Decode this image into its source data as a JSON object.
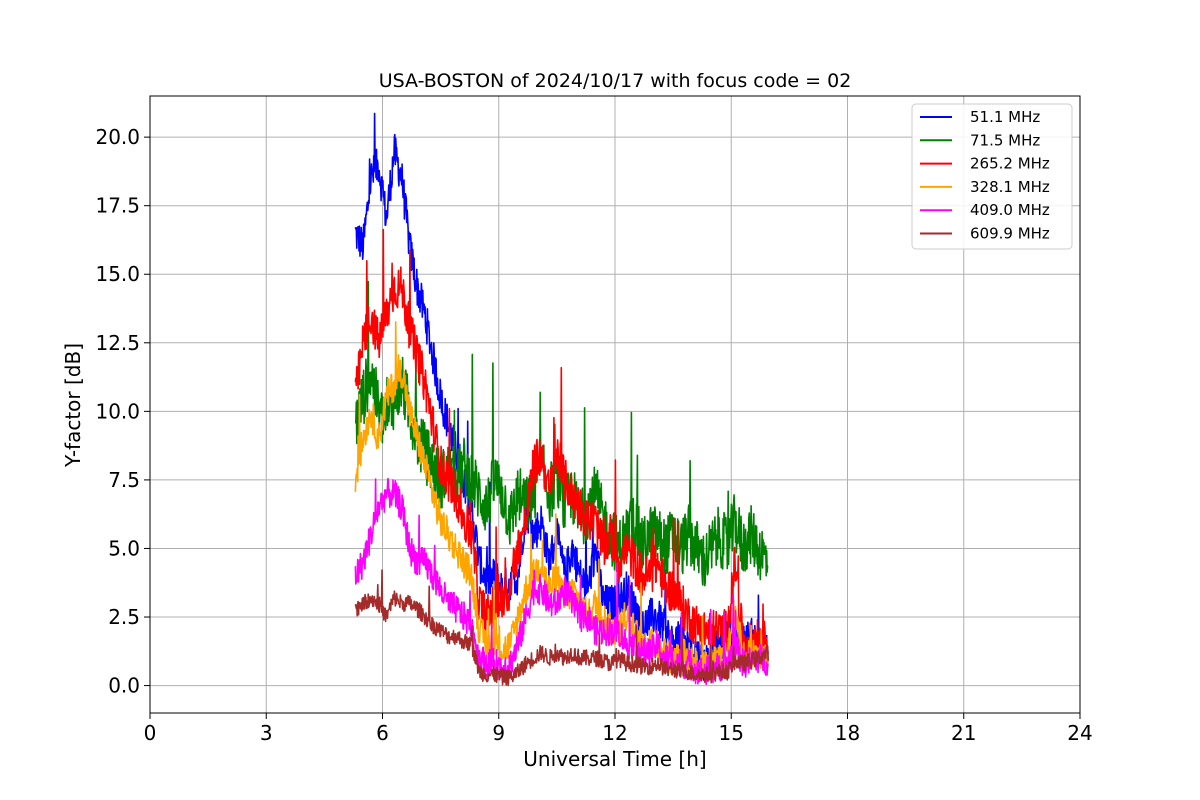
{
  "chart_data": {
    "type": "line",
    "title": "USA-BOSTON of 2024/10/17 with focus code = 02",
    "xlabel": "Universal Time [h]",
    "ylabel": "Y-factor [dB]",
    "xlim": [
      0,
      24
    ],
    "ylim": [
      -1.0,
      21.5
    ],
    "xticks": [
      0,
      3,
      6,
      9,
      12,
      15,
      18,
      21,
      24
    ],
    "xtick_labels": [
      "0",
      "3",
      "6",
      "9",
      "12",
      "15",
      "18",
      "21",
      "24"
    ],
    "yticks": [
      0,
      2.5,
      5,
      7.5,
      10,
      12.5,
      15,
      17.5,
      20
    ],
    "ytick_labels": [
      "0.0",
      "2.5",
      "5.0",
      "7.5",
      "10.0",
      "12.5",
      "15.0",
      "17.5",
      "20.0"
    ],
    "grid": true,
    "legend_position": "top-right",
    "series": [
      {
        "name": " 51.1 MHz",
        "color": "#0000ff",
        "x": [
          5.3,
          5.5,
          5.7,
          5.9,
          6.1,
          6.3,
          6.5,
          6.7,
          6.9,
          7.1,
          7.3,
          7.5,
          7.7,
          7.9,
          8.1,
          8.3,
          8.5,
          8.7,
          8.9,
          9.1,
          9.3,
          9.5,
          9.7,
          9.9,
          10.1,
          10.3,
          10.5,
          10.7,
          10.9,
          11.1,
          11.3,
          11.5,
          11.7,
          11.9,
          12.1,
          12.3,
          12.5,
          12.7,
          12.9,
          13.1,
          13.3,
          13.5,
          13.7,
          13.9,
          14.1,
          14.3,
          14.5,
          14.7,
          14.9,
          15.1,
          15.3,
          15.5,
          15.7,
          15.95
        ],
        "y": [
          16.5,
          16.0,
          18.5,
          19.0,
          17.0,
          19.5,
          18.5,
          16.0,
          14.5,
          13.5,
          12.0,
          10.5,
          9.5,
          8.5,
          7.5,
          6.5,
          4.5,
          3.8,
          4.0,
          3.5,
          3.8,
          4.0,
          6.5,
          5.5,
          6.0,
          4.5,
          5.5,
          4.0,
          5.0,
          4.0,
          3.5,
          5.0,
          3.0,
          3.0,
          3.0,
          3.5,
          3.0,
          2.0,
          2.5,
          2.5,
          2.0,
          1.5,
          1.8,
          1.5,
          1.2,
          0.8,
          1.2,
          1.5,
          2.0,
          1.5,
          1.5,
          1.8,
          1.5,
          1.2
        ]
      },
      {
        "name": " 71.5 MHz",
        "color": "#008000",
        "x": [
          5.3,
          5.5,
          5.7,
          5.9,
          6.1,
          6.3,
          6.5,
          6.7,
          6.9,
          7.1,
          7.3,
          7.5,
          7.7,
          7.9,
          8.1,
          8.3,
          8.5,
          8.7,
          8.9,
          9.1,
          9.3,
          9.5,
          9.7,
          9.9,
          10.1,
          10.3,
          10.5,
          10.7,
          10.9,
          11.1,
          11.3,
          11.5,
          11.7,
          11.9,
          12.1,
          12.3,
          12.5,
          12.7,
          12.9,
          13.1,
          13.3,
          13.5,
          13.7,
          13.9,
          14.1,
          14.3,
          14.5,
          14.7,
          14.9,
          15.1,
          15.3,
          15.5,
          15.7,
          15.95
        ],
        "y": [
          9.5,
          10.5,
          11.5,
          10.0,
          9.5,
          10.5,
          11.0,
          10.0,
          9.0,
          8.5,
          8.0,
          7.5,
          7.8,
          7.5,
          8.0,
          7.5,
          7.0,
          6.5,
          7.5,
          7.0,
          6.0,
          7.0,
          6.5,
          7.0,
          8.0,
          7.0,
          7.5,
          6.5,
          7.0,
          6.0,
          6.5,
          7.0,
          6.0,
          5.5,
          5.0,
          5.5,
          6.0,
          5.0,
          5.5,
          5.5,
          5.0,
          5.5,
          5.0,
          5.5,
          5.0,
          4.5,
          5.0,
          5.5,
          5.0,
          6.0,
          5.0,
          5.5,
          5.0,
          4.5
        ]
      },
      {
        "name": " 265.2 MHz",
        "color": "#ff0000",
        "x": [
          5.3,
          5.5,
          5.7,
          5.9,
          6.1,
          6.3,
          6.5,
          6.7,
          6.9,
          7.1,
          7.3,
          7.5,
          7.7,
          7.9,
          8.1,
          8.3,
          8.5,
          8.7,
          8.9,
          9.1,
          9.3,
          9.5,
          9.7,
          9.9,
          10.1,
          10.3,
          10.5,
          10.7,
          10.9,
          11.1,
          11.3,
          11.5,
          11.7,
          11.9,
          12.1,
          12.3,
          12.5,
          12.7,
          12.9,
          13.1,
          13.3,
          13.5,
          13.7,
          13.9,
          14.1,
          14.3,
          14.5,
          14.7,
          14.9,
          15.1,
          15.3,
          15.5,
          15.7,
          15.95
        ],
        "y": [
          10.5,
          12.5,
          13.5,
          12.5,
          13.5,
          14.5,
          14.5,
          13.0,
          12.0,
          11.0,
          9.5,
          8.0,
          7.5,
          7.0,
          6.0,
          5.5,
          3.0,
          2.5,
          3.0,
          3.0,
          3.5,
          5.0,
          6.0,
          8.0,
          8.5,
          7.0,
          8.5,
          7.5,
          7.0,
          6.5,
          6.0,
          6.0,
          5.0,
          5.5,
          4.5,
          5.0,
          4.5,
          4.0,
          4.0,
          4.5,
          3.5,
          3.5,
          3.0,
          2.5,
          2.2,
          2.0,
          2.0,
          2.0,
          2.0,
          4.5,
          1.5,
          1.5,
          1.8,
          1.5
        ]
      },
      {
        "name": " 328.1 MHz",
        "color": "#ffa500",
        "x": [
          5.3,
          5.5,
          5.7,
          5.9,
          6.1,
          6.3,
          6.5,
          6.7,
          6.9,
          7.1,
          7.3,
          7.5,
          7.7,
          7.9,
          8.1,
          8.3,
          8.5,
          8.7,
          8.9,
          9.1,
          9.3,
          9.5,
          9.7,
          9.9,
          10.1,
          10.3,
          10.5,
          10.7,
          10.9,
          11.1,
          11.3,
          11.5,
          11.7,
          11.9,
          12.1,
          12.3,
          12.5,
          12.7,
          12.9,
          13.1,
          13.3,
          13.5,
          13.7,
          13.9,
          14.1,
          14.3,
          14.5,
          14.7,
          14.9,
          15.1,
          15.3,
          15.5,
          15.7,
          15.95
        ],
        "y": [
          7.5,
          9.0,
          10.0,
          9.0,
          10.5,
          11.0,
          11.5,
          10.0,
          9.0,
          8.0,
          7.0,
          6.0,
          5.5,
          5.0,
          4.5,
          4.0,
          2.0,
          1.5,
          1.5,
          1.3,
          1.5,
          2.5,
          3.5,
          4.0,
          4.5,
          3.5,
          4.0,
          3.0,
          3.5,
          3.0,
          2.5,
          3.0,
          2.5,
          2.0,
          2.0,
          2.5,
          2.0,
          1.5,
          1.5,
          1.5,
          1.2,
          1.0,
          1.2,
          1.0,
          0.8,
          0.7,
          0.8,
          0.9,
          1.0,
          3.0,
          1.0,
          1.2,
          1.0,
          1.0
        ]
      },
      {
        "name": " 409.0 MHz",
        "color": "#ff00ff",
        "x": [
          5.3,
          5.5,
          5.7,
          5.9,
          6.1,
          6.3,
          6.5,
          6.7,
          6.9,
          7.1,
          7.3,
          7.5,
          7.7,
          7.9,
          8.1,
          8.3,
          8.5,
          8.7,
          8.9,
          9.1,
          9.3,
          9.5,
          9.7,
          9.9,
          10.1,
          10.3,
          10.5,
          10.7,
          10.9,
          11.1,
          11.3,
          11.5,
          11.7,
          11.9,
          12.1,
          12.3,
          12.5,
          12.7,
          12.9,
          13.1,
          13.3,
          13.5,
          13.7,
          13.9,
          14.1,
          14.3,
          14.5,
          14.7,
          14.9,
          15.1,
          15.3,
          15.5,
          15.7,
          15.95
        ],
        "y": [
          4.0,
          4.5,
          5.5,
          6.5,
          7.0,
          7.0,
          6.5,
          5.0,
          4.5,
          4.5,
          4.0,
          3.5,
          3.0,
          2.8,
          2.5,
          2.2,
          1.0,
          0.8,
          0.8,
          0.7,
          0.8,
          1.5,
          2.5,
          3.5,
          3.5,
          3.0,
          3.0,
          3.5,
          3.0,
          2.5,
          2.5,
          2.0,
          2.0,
          2.0,
          2.0,
          1.5,
          1.5,
          1.2,
          1.2,
          1.5,
          1.0,
          1.0,
          0.8,
          0.8,
          0.6,
          0.5,
          0.6,
          0.7,
          0.8,
          1.5,
          0.8,
          0.9,
          1.0,
          0.9
        ]
      },
      {
        "name": " 609.9 MHz",
        "color": "#a52a2a",
        "x": [
          5.3,
          5.5,
          5.7,
          5.9,
          6.1,
          6.3,
          6.5,
          6.7,
          6.9,
          7.1,
          7.3,
          7.5,
          7.7,
          7.9,
          8.1,
          8.3,
          8.5,
          8.7,
          8.9,
          9.1,
          9.3,
          9.5,
          9.7,
          9.9,
          10.1,
          10.3,
          10.5,
          10.7,
          10.9,
          11.1,
          11.3,
          11.5,
          11.7,
          11.9,
          12.1,
          12.3,
          12.5,
          12.7,
          12.9,
          13.1,
          13.3,
          13.5,
          13.7,
          13.9,
          14.1,
          14.3,
          14.5,
          14.7,
          14.9,
          15.1,
          15.3,
          15.5,
          15.7,
          15.95
        ],
        "y": [
          2.8,
          3.0,
          3.2,
          3.0,
          2.5,
          3.2,
          3.0,
          3.0,
          2.8,
          2.5,
          2.2,
          2.0,
          1.8,
          1.8,
          1.6,
          1.5,
          0.5,
          0.4,
          0.4,
          0.3,
          0.3,
          0.5,
          0.8,
          1.0,
          1.2,
          1.0,
          1.2,
          1.0,
          1.2,
          1.0,
          1.0,
          1.0,
          0.9,
          0.8,
          1.0,
          0.8,
          0.8,
          0.7,
          0.7,
          0.8,
          0.6,
          0.6,
          0.5,
          0.5,
          0.4,
          0.4,
          0.4,
          0.5,
          0.5,
          0.9,
          0.8,
          0.9,
          1.0,
          1.2
        ]
      }
    ]
  }
}
